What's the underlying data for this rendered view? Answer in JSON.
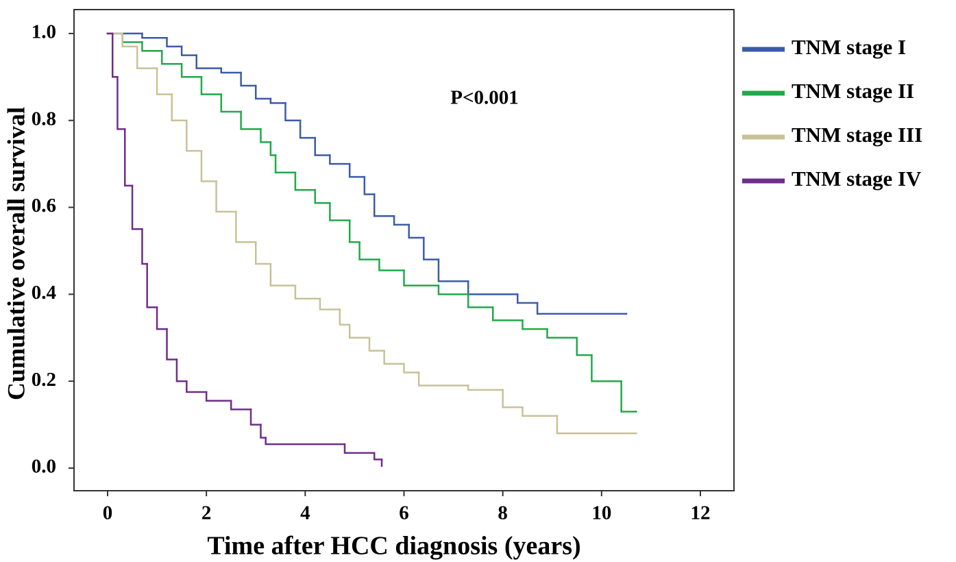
{
  "chart_data": {
    "type": "line",
    "step": true,
    "annotation": "P<0.001",
    "x_label": "Time after HCC diagnosis (years)",
    "y_label": "Cumulative overall survival",
    "xlim": [
      -0.68,
      12.68
    ],
    "ylim": [
      -0.052,
      1.055
    ],
    "xticks": [
      0,
      2,
      4,
      6,
      8,
      10,
      12
    ],
    "yticks": [
      {
        "value": 0,
        "label": "0.0"
      },
      0.2,
      0.4,
      0.6,
      0.8,
      {
        "value": 1,
        "label": "1.0"
      }
    ],
    "legend": "right",
    "series": [
      {
        "name": "TNM stage I",
        "color": "#3b5ba9",
        "x": [
          0,
          0.7,
          1.2,
          1.5,
          1.8,
          2.3,
          2.7,
          3.0,
          3.3,
          3.6,
          3.9,
          4.2,
          4.5,
          4.9,
          5.2,
          5.4,
          5.8,
          6.1,
          6.4,
          6.7,
          7.3,
          8.3,
          8.7,
          10.5
        ],
        "values": [
          1.0,
          0.99,
          0.97,
          0.95,
          0.92,
          0.91,
          0.88,
          0.85,
          0.84,
          0.8,
          0.76,
          0.72,
          0.7,
          0.67,
          0.63,
          0.58,
          0.56,
          0.53,
          0.48,
          0.43,
          0.4,
          0.38,
          0.355,
          0.355
        ]
      },
      {
        "name": "TNM stage II",
        "color": "#22a84a",
        "x": [
          0,
          0.3,
          0.7,
          1.1,
          1.5,
          1.9,
          2.3,
          2.7,
          3.1,
          3.3,
          3.4,
          3.8,
          4.2,
          4.5,
          4.9,
          5.1,
          5.5,
          6.0,
          6.7,
          7.3,
          7.8,
          8.4,
          8.9,
          9.5,
          9.8,
          10.4,
          10.7
        ],
        "values": [
          1.0,
          0.98,
          0.96,
          0.93,
          0.9,
          0.86,
          0.82,
          0.78,
          0.75,
          0.72,
          0.68,
          0.64,
          0.61,
          0.57,
          0.52,
          0.48,
          0.455,
          0.42,
          0.4,
          0.37,
          0.34,
          0.32,
          0.3,
          0.26,
          0.2,
          0.13,
          0.13
        ]
      },
      {
        "name": "TNM stage III",
        "color": "#c9c197",
        "x": [
          0,
          0.3,
          0.6,
          1.0,
          1.3,
          1.6,
          1.9,
          2.2,
          2.6,
          3.0,
          3.3,
          3.8,
          4.3,
          4.7,
          4.9,
          5.3,
          5.6,
          6.0,
          6.3,
          7.3,
          8.0,
          8.4,
          9.1,
          10.7
        ],
        "values": [
          1.0,
          0.97,
          0.92,
          0.86,
          0.8,
          0.73,
          0.66,
          0.59,
          0.52,
          0.47,
          0.42,
          0.39,
          0.365,
          0.33,
          0.3,
          0.27,
          0.24,
          0.22,
          0.19,
          0.18,
          0.14,
          0.12,
          0.08,
          0.08
        ]
      },
      {
        "name": "TNM stage IV",
        "color": "#6e2d8b",
        "x": [
          0,
          0.1,
          0.2,
          0.35,
          0.5,
          0.7,
          0.8,
          1.0,
          1.2,
          1.4,
          1.6,
          2.0,
          2.5,
          2.9,
          3.1,
          3.2,
          4.8,
          5.4,
          5.55
        ],
        "values": [
          1.0,
          0.9,
          0.78,
          0.65,
          0.55,
          0.47,
          0.37,
          0.32,
          0.25,
          0.2,
          0.175,
          0.155,
          0.135,
          0.1,
          0.07,
          0.055,
          0.035,
          0.02,
          0.005
        ]
      }
    ]
  }
}
